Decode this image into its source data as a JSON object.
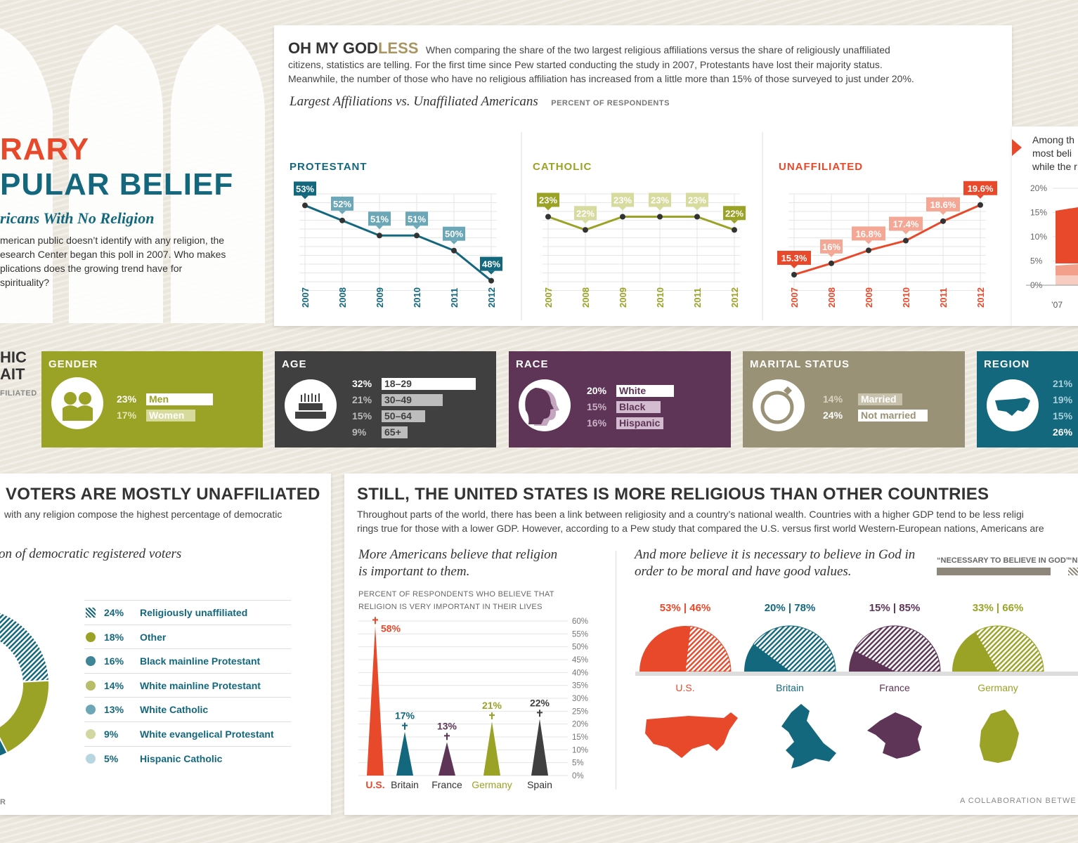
{
  "colors": {
    "teal": "#14687e",
    "olive": "#9aa325",
    "red": "#e8492b",
    "purple": "#5e3557",
    "gray": "#404040",
    "khaki": "#9a9276"
  },
  "hero": {
    "title_line1": "RARY",
    "title_line2": "PULAR BELIEF",
    "subtitle": "ricans With No Religion",
    "body": [
      "merican public doesn’t identify with any religion, the",
      "esearch Center began this poll in 2007. Who makes",
      "plications does the growing trend have for",
      " spirituality?"
    ]
  },
  "intro": {
    "head_a": "OH MY GOD",
    "head_b": "LESS",
    "text_first": "When comparing the share of the two largest religious affiliations versus the share of religiously unaffiliated",
    "text_rest": [
      "citizens, statistics are telling. For the first time since Pew started conducting the study in 2007, Protestants have lost their majority status.",
      "Meanwhile, the number of those who have no religious affiliation has increased from a little more than 15% of those surveyed to just under 20%."
    ],
    "chart_title": "Largest Affiliations vs. Unaffiliated Americans",
    "chart_note": "PERCENT OF RESPONDENTS"
  },
  "side_note": {
    "lines": [
      "Among th",
      "most beli",
      "while the r"
    ],
    "y_ticks": [
      "20%",
      "15%",
      "10%",
      "5%",
      "0%"
    ],
    "x_first": "’07"
  },
  "chart_data": [
    {
      "type": "line",
      "title": "PROTESTANT",
      "x": [
        "2007",
        "2008",
        "2009",
        "2010",
        "2011",
        "2012"
      ],
      "values": [
        53,
        52,
        51,
        51,
        50,
        48
      ],
      "labels": [
        "53%",
        "52%",
        "51%",
        "51%",
        "50%",
        "48%"
      ],
      "color": "#14687e"
    },
    {
      "type": "line",
      "title": "CATHOLIC",
      "x": [
        "2007",
        "2008",
        "2009",
        "2010",
        "2011",
        "2012"
      ],
      "values": [
        23,
        22,
        23,
        23,
        23,
        22
      ],
      "labels": [
        "23%",
        "22%",
        "23%",
        "23%",
        "23%",
        "22%"
      ],
      "color": "#9aa325"
    },
    {
      "type": "line",
      "title": "UNAFFILIATED",
      "x": [
        "2007",
        "2008",
        "2009",
        "2010",
        "2011",
        "2012"
      ],
      "values": [
        15.3,
        16,
        16.8,
        17.4,
        18.6,
        19.6
      ],
      "labels": [
        "15.3%",
        "16%",
        "16.8%",
        "17.4%",
        "18.6%",
        "19.6%"
      ],
      "color": "#e8492b"
    },
    {
      "type": "pie",
      "title": "on of democratic registered voters",
      "legend": [
        {
          "label": "Religiously unaffiliated",
          "value": 24,
          "pct": "24%"
        },
        {
          "label": "Other",
          "value": 18,
          "pct": "18%"
        },
        {
          "label": "Black mainline Protestant",
          "value": 16,
          "pct": "16%"
        },
        {
          "label": "White mainline Protestant",
          "value": 14,
          "pct": "14%"
        },
        {
          "label": "White Catholic",
          "value": 13,
          "pct": "13%"
        },
        {
          "label": "White evangelical Protestant",
          "value": 9,
          "pct": "9%"
        },
        {
          "label": "Hispanic Catholic",
          "value": 5,
          "pct": "5%"
        }
      ]
    },
    {
      "type": "bar",
      "title": "More Americans believe that religion is important to them.",
      "subtitle": [
        "PERCENT OF RESPONDENTS WHO BELIEVE THAT",
        "RELIGION IS VERY IMPORTANT IN THEIR LIVES"
      ],
      "categories": [
        "U.S.",
        "Britain",
        "France",
        "Germany",
        "Spain"
      ],
      "values": [
        58,
        17,
        13,
        21,
        22
      ],
      "labels": [
        "58%",
        "17%",
        "13%",
        "21%",
        "22%"
      ],
      "y_ticks": [
        "60%",
        "55%",
        "50%",
        "45%",
        "40%",
        "35%",
        "30%",
        "25%",
        "20%",
        "15%",
        "10%",
        "5%",
        "0%"
      ],
      "ylim": [
        0,
        60
      ]
    },
    {
      "type": "pie",
      "title": "And more believe it is necessary to believe in God in order to be moral and have good values.",
      "legend": [
        "“NECESSARY TO BELIEVE IN GOD”",
        "“NO"
      ],
      "countries": [
        {
          "name": "U.S.",
          "necessary": 53,
          "not": 46,
          "label": "53%  |  46%"
        },
        {
          "name": "Britain",
          "necessary": 20,
          "not": 78,
          "label": "20%  |  78%"
        },
        {
          "name": "France",
          "necessary": 15,
          "not": 85,
          "label": "15%  |  85%"
        },
        {
          "name": "Germany",
          "necessary": 33,
          "not": 66,
          "label": "33%  |  66%"
        }
      ]
    }
  ],
  "demographics": {
    "side_title": [
      "HIC",
      "AIT"
    ],
    "side_note": "FILIATED",
    "gender": {
      "title": "GENDER",
      "rows": [
        {
          "pct": "23%",
          "label": "Men",
          "value": 23
        },
        {
          "pct": "17%",
          "label": "Women",
          "value": 17
        }
      ]
    },
    "age": {
      "title": "AGE",
      "rows": [
        {
          "pct": "32%",
          "label": "18–29",
          "value": 32
        },
        {
          "pct": "21%",
          "label": "30–49",
          "value": 21
        },
        {
          "pct": "15%",
          "label": "50–64",
          "value": 15
        },
        {
          "pct": "9%",
          "label": "65+",
          "value": 9
        }
      ]
    },
    "race": {
      "title": "RACE",
      "rows": [
        {
          "pct": "20%",
          "label": "White",
          "value": 20
        },
        {
          "pct": "15%",
          "label": "Black",
          "value": 15
        },
        {
          "pct": "16%",
          "label": "Hispanic",
          "value": 16
        }
      ]
    },
    "marital": {
      "title": "MARITAL STATUS",
      "rows": [
        {
          "pct": "14%",
          "label": "Married",
          "value": 14
        },
        {
          "pct": "24%",
          "label": "Not married",
          "value": 24
        }
      ]
    },
    "region": {
      "title": "REGION",
      "rows": [
        "21%",
        "19%",
        "15%",
        "26%"
      ]
    }
  },
  "voters": {
    "title": "VOTERS ARE MOSTLY UNAFFILIATED",
    "text": " with any religion compose the highest percentage of democratic",
    "footer": "R"
  },
  "countries_section": {
    "title": "STILL, THE UNITED STATES IS MORE RELIGIOUS THAN OTHER COUNTRIES",
    "text": [
      "Throughout parts of the world, there has been a link between religiosity and a country’s national wealth. Countries with a higher GDP tend to be less religi",
      "rings true for those with a lower GDP. However, according to a Pew study that compared the U.S. versus first world Western-European nations, Americans are"
    ],
    "footer": "A COLLABORATION BETWE"
  }
}
